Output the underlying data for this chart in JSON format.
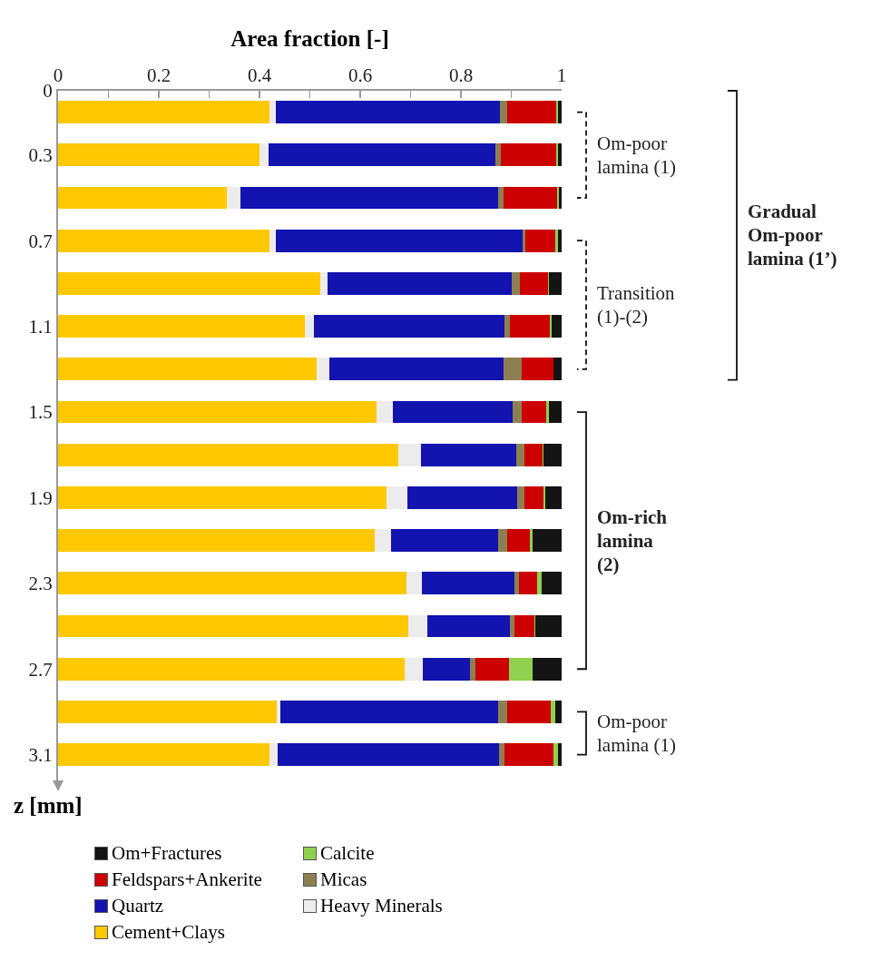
{
  "chart_data": {
    "type": "bar",
    "orientation": "horizontal",
    "stacked": true,
    "xlabel": "Area fraction [-]",
    "ylabel": "z [mm]",
    "x": [
      0.1,
      0.3,
      0.5,
      0.7,
      0.9,
      1.1,
      1.3,
      1.5,
      1.7,
      1.9,
      2.1,
      2.3,
      2.5,
      2.7,
      2.9,
      3.1
    ],
    "xlim": [
      0,
      1
    ],
    "xticks": [
      0,
      {
        "value": 0.1,
        "label": null
      },
      0.2,
      {
        "value": 0.3,
        "label": null
      },
      0.4,
      {
        "value": 0.5,
        "label": null
      },
      0.6,
      {
        "value": 0.7,
        "label": null
      },
      0.8,
      {
        "value": 0.9,
        "label": null
      },
      1
    ],
    "ylim": [
      3.22,
      0
    ],
    "yticks": [
      0,
      0.3,
      0.7,
      1.1,
      1.5,
      1.9,
      2.3,
      2.7,
      3.1
    ],
    "series": [
      {
        "name": "Cement+Clays",
        "color": "#ffc800",
        "values": [
          0.42,
          0.4,
          0.335,
          0.42,
          0.52,
          0.49,
          0.514,
          0.632,
          0.676,
          0.652,
          0.629,
          0.691,
          0.695,
          0.689,
          0.434,
          0.42
        ]
      },
      {
        "name": "Heavy Minerals",
        "color": "#ececec",
        "values": [
          0.012,
          0.018,
          0.027,
          0.012,
          0.015,
          0.018,
          0.024,
          0.033,
          0.044,
          0.042,
          0.033,
          0.031,
          0.039,
          0.035,
          0.007,
          0.016
        ]
      },
      {
        "name": "Quartz",
        "color": "#1313b0",
        "values": [
          0.445,
          0.45,
          0.512,
          0.49,
          0.365,
          0.378,
          0.347,
          0.238,
          0.189,
          0.218,
          0.211,
          0.185,
          0.163,
          0.094,
          0.432,
          0.439
        ]
      },
      {
        "name": "Micas",
        "color": "#8c8052",
        "values": [
          0.014,
          0.012,
          0.011,
          0.006,
          0.018,
          0.011,
          0.036,
          0.018,
          0.018,
          0.014,
          0.019,
          0.009,
          0.01,
          0.01,
          0.018,
          0.011
        ]
      },
      {
        "name": "Feldspars+Ankerite",
        "color": "#cc0000",
        "values": [
          0.099,
          0.109,
          0.106,
          0.059,
          0.055,
          0.08,
          0.062,
          0.048,
          0.036,
          0.038,
          0.045,
          0.036,
          0.039,
          0.067,
          0.087,
          0.098
        ]
      },
      {
        "name": "Calcite",
        "color": "#8fd14f",
        "values": [
          0.003,
          0.003,
          0.004,
          0.006,
          0.002,
          0.004,
          0,
          0.005,
          0.001,
          0.004,
          0.005,
          0.008,
          0.001,
          0.047,
          0.009,
          0.008
        ]
      },
      {
        "name": "Om+Fractures",
        "color": "#141414",
        "values": [
          0.007,
          0.008,
          0.005,
          0.007,
          0.025,
          0.019,
          0.017,
          0.026,
          0.036,
          0.032,
          0.058,
          0.04,
          0.053,
          0.058,
          0.013,
          0.008
        ]
      }
    ],
    "annotations": [
      "Om-poor lamina (1)",
      "Transition (1)-(2)",
      "Gradual Om-poor lamina (1’)",
      "Om-rich lamina (2)",
      "Om-poor lamina (1)"
    ],
    "grid": false,
    "legend": "bottom"
  }
}
